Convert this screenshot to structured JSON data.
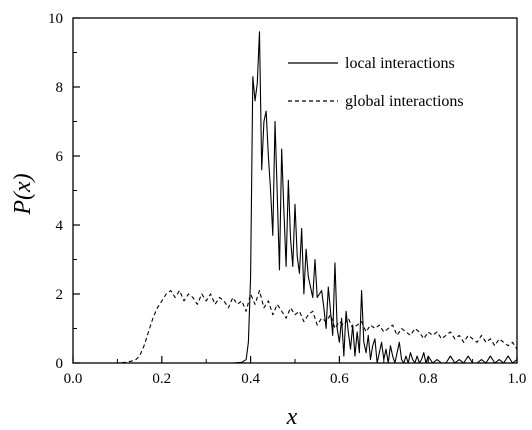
{
  "chart_data": {
    "type": "line",
    "xlabel": "x",
    "ylabel_parts": [
      "P(",
      "x",
      ")"
    ],
    "xlim": [
      0.0,
      1.0
    ],
    "ylim": [
      0,
      10
    ],
    "xticks": [
      "0.0",
      "0.2",
      "0.4",
      "0.6",
      "0.8",
      "1.0"
    ],
    "yticks": [
      "0",
      "2",
      "4",
      "6",
      "8",
      "10"
    ],
    "legend_position": "top-right",
    "series": [
      {
        "name": "local interactions",
        "style": "solid",
        "color": "#000000",
        "x": [
          0.0,
          0.1,
          0.2,
          0.3,
          0.36,
          0.38,
          0.39,
          0.395,
          0.4,
          0.405,
          0.41,
          0.415,
          0.42,
          0.425,
          0.43,
          0.435,
          0.44,
          0.445,
          0.45,
          0.455,
          0.46,
          0.465,
          0.47,
          0.475,
          0.48,
          0.485,
          0.49,
          0.495,
          0.5,
          0.505,
          0.51,
          0.515,
          0.52,
          0.525,
          0.53,
          0.535,
          0.54,
          0.545,
          0.55,
          0.555,
          0.56,
          0.565,
          0.57,
          0.575,
          0.58,
          0.585,
          0.59,
          0.595,
          0.6,
          0.605,
          0.61,
          0.615,
          0.62,
          0.625,
          0.63,
          0.635,
          0.64,
          0.645,
          0.65,
          0.655,
          0.66,
          0.665,
          0.67,
          0.675,
          0.68,
          0.685,
          0.69,
          0.695,
          0.7,
          0.705,
          0.71,
          0.715,
          0.72,
          0.725,
          0.73,
          0.735,
          0.74,
          0.745,
          0.75,
          0.755,
          0.76,
          0.765,
          0.77,
          0.775,
          0.78,
          0.785,
          0.79,
          0.795,
          0.8,
          0.81,
          0.82,
          0.83,
          0.84,
          0.85,
          0.86,
          0.87,
          0.88,
          0.89,
          0.9,
          0.91,
          0.92,
          0.93,
          0.94,
          0.95,
          0.96,
          0.97,
          0.98,
          0.99,
          1.0
        ],
        "y": [
          0.0,
          0.0,
          0.0,
          0.0,
          0.0,
          0.02,
          0.1,
          0.6,
          2.5,
          8.3,
          7.6,
          8.1,
          9.6,
          5.6,
          7.0,
          7.3,
          6.0,
          5.0,
          3.7,
          7.0,
          4.9,
          2.7,
          6.2,
          4.4,
          2.8,
          5.3,
          3.6,
          2.8,
          4.6,
          3.1,
          2.6,
          3.9,
          2.0,
          3.3,
          2.5,
          2.2,
          1.9,
          3.0,
          1.9,
          2.0,
          2.1,
          1.6,
          1.0,
          2.2,
          1.5,
          0.8,
          2.9,
          1.0,
          0.6,
          1.3,
          0.2,
          1.5,
          0.9,
          0.4,
          1.1,
          0.2,
          0.9,
          0.3,
          2.1,
          0.6,
          0.3,
          0.8,
          0.1,
          0.5,
          0.7,
          0.0,
          0.3,
          0.6,
          0.1,
          0.4,
          0.0,
          0.5,
          0.2,
          0.0,
          0.3,
          0.6,
          0.1,
          0.0,
          0.2,
          0.0,
          0.3,
          0.1,
          0.0,
          0.2,
          0.0,
          0.1,
          0.3,
          0.0,
          0.2,
          0.0,
          0.1,
          0.0,
          0.0,
          0.2,
          0.0,
          0.1,
          0.0,
          0.2,
          0.0,
          0.0,
          0.1,
          0.0,
          0.2,
          0.0,
          0.1,
          0.0,
          0.2,
          0.0,
          0.1
        ]
      },
      {
        "name": "global interactions",
        "style": "dashed",
        "color": "#000000",
        "x": [
          0.0,
          0.05,
          0.1,
          0.12,
          0.14,
          0.15,
          0.16,
          0.17,
          0.18,
          0.19,
          0.2,
          0.21,
          0.22,
          0.23,
          0.24,
          0.25,
          0.26,
          0.27,
          0.28,
          0.29,
          0.3,
          0.31,
          0.32,
          0.33,
          0.34,
          0.35,
          0.36,
          0.37,
          0.38,
          0.39,
          0.4,
          0.41,
          0.42,
          0.43,
          0.44,
          0.45,
          0.46,
          0.47,
          0.48,
          0.49,
          0.5,
          0.51,
          0.52,
          0.53,
          0.54,
          0.55,
          0.56,
          0.57,
          0.58,
          0.59,
          0.6,
          0.61,
          0.62,
          0.63,
          0.64,
          0.65,
          0.66,
          0.67,
          0.68,
          0.69,
          0.7,
          0.71,
          0.72,
          0.73,
          0.74,
          0.75,
          0.76,
          0.77,
          0.78,
          0.79,
          0.8,
          0.81,
          0.82,
          0.83,
          0.84,
          0.85,
          0.86,
          0.87,
          0.88,
          0.89,
          0.9,
          0.91,
          0.92,
          0.93,
          0.94,
          0.95,
          0.96,
          0.97,
          0.98,
          0.99,
          1.0
        ],
        "y": [
          0.0,
          0.0,
          0.0,
          0.02,
          0.08,
          0.2,
          0.5,
          0.9,
          1.3,
          1.6,
          1.8,
          2.0,
          2.1,
          1.9,
          2.1,
          1.8,
          2.0,
          1.9,
          1.7,
          2.0,
          1.8,
          2.0,
          1.7,
          1.9,
          1.8,
          1.6,
          1.9,
          1.7,
          1.8,
          1.5,
          2.0,
          1.7,
          2.1,
          1.6,
          1.8,
          1.4,
          1.7,
          1.5,
          1.3,
          1.6,
          1.4,
          1.5,
          1.2,
          1.4,
          1.5,
          1.1,
          1.3,
          1.2,
          1.4,
          1.0,
          1.2,
          1.1,
          1.3,
          1.0,
          1.1,
          1.2,
          0.9,
          1.1,
          1.0,
          1.1,
          0.9,
          1.0,
          1.1,
          0.8,
          1.0,
          0.9,
          0.8,
          1.0,
          0.9,
          0.7,
          0.9,
          0.8,
          0.9,
          0.7,
          0.8,
          0.9,
          0.7,
          0.8,
          0.6,
          0.8,
          0.7,
          0.6,
          0.8,
          0.6,
          0.7,
          0.5,
          0.7,
          0.6,
          0.5,
          0.6,
          0.4
        ]
      }
    ]
  }
}
